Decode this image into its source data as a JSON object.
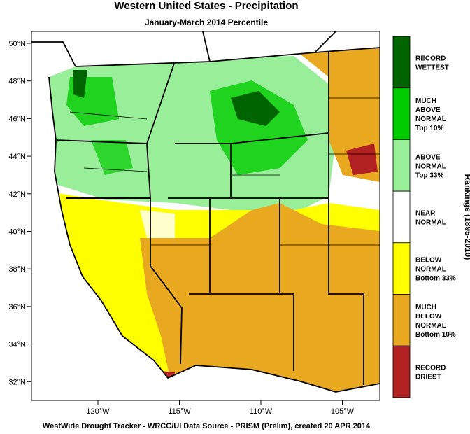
{
  "title": "Western United States - Precipitation",
  "subtitle": "January-March 2014 Percentile",
  "latitude_labels": [
    "50°N",
    "48°N",
    "46°N",
    "44°N",
    "42°N",
    "40°N",
    "38°N",
    "36°N",
    "34°N",
    "32°N"
  ],
  "longitude_labels": [
    "120°W",
    "115°W",
    "110°W",
    "105°W"
  ],
  "legend": {
    "title": "Rankings (1895-2010)",
    "items": [
      {
        "lines": [
          "RECORD",
          "WETTEST"
        ],
        "color": "#006400"
      },
      {
        "lines": [
          "MUCH",
          "ABOVE",
          "NORMAL",
          "Top 10%"
        ],
        "color": "#00cc00"
      },
      {
        "lines": [
          "ABOVE",
          "NORMAL",
          "Top 33%"
        ],
        "color": "#99ee99"
      },
      {
        "lines": [
          "NEAR",
          "NORMAL"
        ],
        "color": "#ffffff"
      },
      {
        "lines": [
          "BELOW",
          "NORMAL",
          "Bottom 33%"
        ],
        "color": "#ffff00"
      },
      {
        "lines": [
          "MUCH",
          "BELOW",
          "NORMAL",
          "Bottom 10%"
        ],
        "color": "#e8a820"
      },
      {
        "lines": [
          "RECORD",
          "DRIEST"
        ],
        "color": "#b22222"
      }
    ]
  },
  "footer": "WestWide Drought Tracker - WRCC/UI  Data Source - PRISM (Prelim), created 20 APR 2014"
}
